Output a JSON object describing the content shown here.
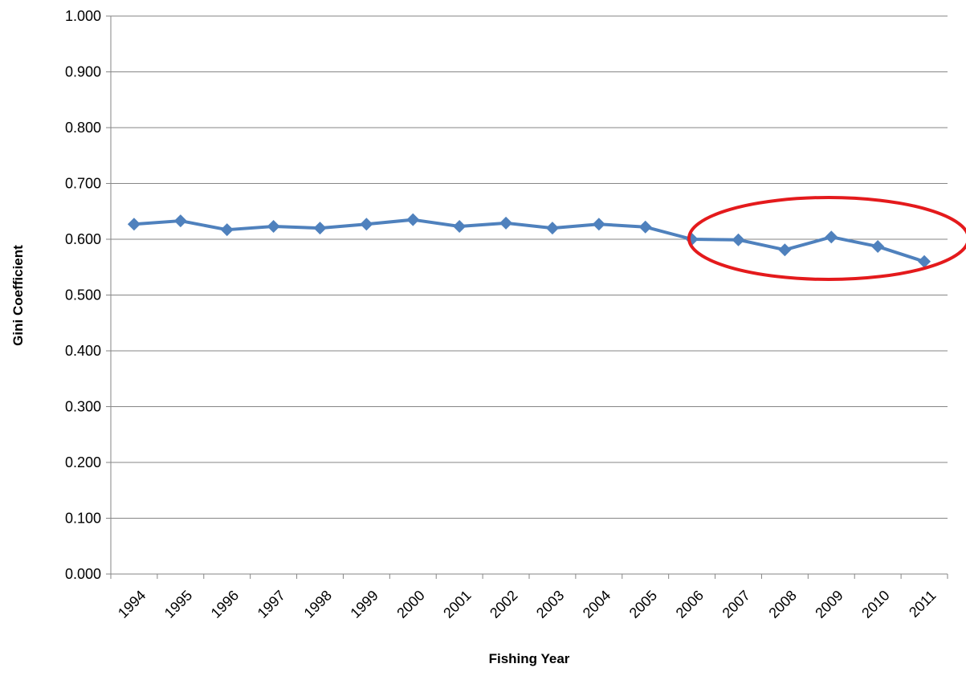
{
  "chart_data": {
    "type": "line",
    "x_label": "Fishing Year",
    "y_label": "Gini Coefficient",
    "categories": [
      "1994",
      "1995",
      "1996",
      "1997",
      "1998",
      "1999",
      "2000",
      "2001",
      "2002",
      "2003",
      "2004",
      "2005",
      "2006",
      "2007",
      "2008",
      "2009",
      "2010",
      "2011"
    ],
    "series": [
      {
        "name": "Gini Coefficient",
        "color": "#4f81bd",
        "values": [
          0.627,
          0.633,
          0.617,
          0.623,
          0.62,
          0.627,
          0.635,
          0.623,
          0.629,
          0.62,
          0.627,
          0.622,
          0.6,
          0.599,
          0.581,
          0.604,
          0.587,
          0.56
        ]
      }
    ],
    "ylim": [
      0,
      1
    ],
    "yticks": [
      {
        "value": 0,
        "label": "0.000"
      },
      {
        "value": 0.1,
        "label": "0.100"
      },
      {
        "value": 0.2,
        "label": "0.200"
      },
      {
        "value": 0.3,
        "label": "0.300"
      },
      {
        "value": 0.4,
        "label": "0.400"
      },
      {
        "value": 0.5,
        "label": "0.500"
      },
      {
        "value": 0.6,
        "label": "0.600"
      },
      {
        "value": 0.7,
        "label": "0.700"
      },
      {
        "value": 0.8,
        "label": "0.800"
      },
      {
        "value": 0.9,
        "label": "0.900"
      },
      {
        "value": 1,
        "label": "1.000"
      }
    ],
    "grid": true
  }
}
